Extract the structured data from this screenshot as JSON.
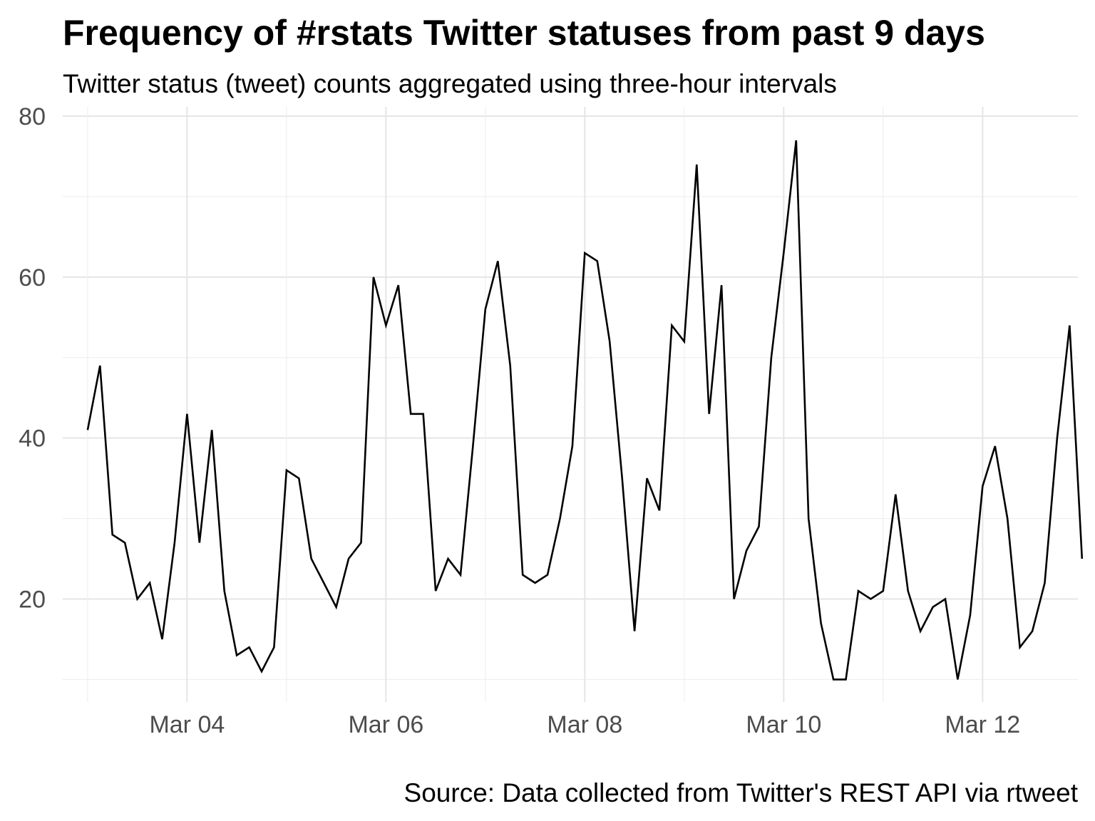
{
  "chart_data": {
    "type": "line",
    "title": "Frequency of #rstats Twitter statuses from past 9 days",
    "subtitle": "Twitter status (tweet) counts aggregated using three-hour intervals",
    "caption": "Source: Data collected from Twitter's REST API via rtweet",
    "xlabel": "",
    "ylabel": "",
    "x_axis_type": "datetime",
    "x_interval": "3 hours",
    "x_tick_labels": [
      "Mar 04",
      "Mar 06",
      "Mar 08",
      "Mar 10",
      "Mar 12"
    ],
    "y_ticks": [
      20,
      40,
      60,
      80
    ],
    "xlim": [
      "2019-03-02 18:00",
      "2019-03-12 23:00"
    ],
    "ylim": [
      8,
      80
    ],
    "grid": true,
    "line_color": "#000000",
    "series": [
      {
        "x": [
          "2019-03-03 00:00",
          "2019-03-03 03:00",
          "2019-03-03 06:00",
          "2019-03-03 09:00",
          "2019-03-03 12:00",
          "2019-03-03 15:00",
          "2019-03-03 18:00",
          "2019-03-03 21:00",
          "2019-03-04 00:00",
          "2019-03-04 03:00",
          "2019-03-04 06:00",
          "2019-03-04 09:00",
          "2019-03-04 12:00",
          "2019-03-04 15:00",
          "2019-03-04 18:00",
          "2019-03-04 21:00",
          "2019-03-05 00:00",
          "2019-03-05 03:00",
          "2019-03-05 06:00",
          "2019-03-05 09:00",
          "2019-03-05 12:00",
          "2019-03-05 15:00",
          "2019-03-05 18:00",
          "2019-03-05 21:00",
          "2019-03-06 00:00",
          "2019-03-06 03:00",
          "2019-03-06 06:00",
          "2019-03-06 09:00",
          "2019-03-06 12:00",
          "2019-03-06 15:00",
          "2019-03-06 18:00",
          "2019-03-06 21:00",
          "2019-03-07 00:00",
          "2019-03-07 03:00",
          "2019-03-07 06:00",
          "2019-03-07 09:00",
          "2019-03-07 12:00",
          "2019-03-07 15:00",
          "2019-03-07 18:00",
          "2019-03-07 21:00",
          "2019-03-08 00:00",
          "2019-03-08 03:00",
          "2019-03-08 06:00",
          "2019-03-08 09:00",
          "2019-03-08 12:00",
          "2019-03-08 15:00",
          "2019-03-08 18:00",
          "2019-03-08 21:00",
          "2019-03-09 00:00",
          "2019-03-09 03:00",
          "2019-03-09 06:00",
          "2019-03-09 09:00",
          "2019-03-09 12:00",
          "2019-03-09 15:00",
          "2019-03-09 18:00",
          "2019-03-09 21:00",
          "2019-03-10 00:00",
          "2019-03-10 03:00",
          "2019-03-10 06:00",
          "2019-03-10 09:00",
          "2019-03-10 12:00",
          "2019-03-10 15:00",
          "2019-03-10 18:00",
          "2019-03-10 21:00",
          "2019-03-11 00:00",
          "2019-03-11 03:00",
          "2019-03-11 06:00",
          "2019-03-11 09:00",
          "2019-03-11 12:00",
          "2019-03-11 15:00",
          "2019-03-11 18:00",
          "2019-03-11 21:00",
          "2019-03-12 00:00",
          "2019-03-12 03:00",
          "2019-03-12 06:00",
          "2019-03-12 09:00",
          "2019-03-12 12:00",
          "2019-03-12 15:00",
          "2019-03-12 18:00",
          "2019-03-12 21:00",
          "2019-03-13 00:00"
        ],
        "values": [
          41,
          49,
          28,
          27,
          20,
          22,
          15,
          27,
          43,
          27,
          41,
          21,
          13,
          14,
          11,
          14,
          36,
          35,
          25,
          22,
          19,
          25,
          27,
          60,
          54,
          59,
          43,
          43,
          21,
          25,
          23,
          39,
          56,
          62,
          49,
          23,
          22,
          23,
          30,
          39,
          63,
          62,
          52,
          35,
          16,
          35,
          31,
          54,
          52,
          74,
          43,
          59,
          20,
          26,
          29,
          50,
          63,
          77,
          30,
          17,
          10,
          10,
          21,
          20,
          21,
          33,
          21,
          16,
          19,
          20,
          10,
          18,
          34,
          39,
          30,
          14,
          16,
          22,
          40,
          54,
          25
        ]
      }
    ]
  }
}
